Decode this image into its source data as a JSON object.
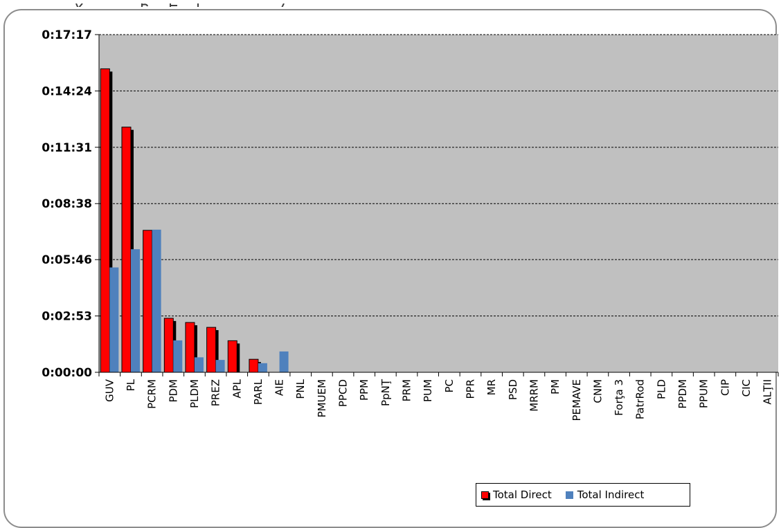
{
  "colors": {
    "plot_background": "#c0c0c0",
    "direct_fill": "#ff0000",
    "direct_shadow": "#000000",
    "indirect_fill": "#4f81bd",
    "gridline": "#000000",
    "frame": "#8c8c8c"
  },
  "chart_data": {
    "type": "bar",
    "title": "",
    "xlabel": "",
    "ylabel": "",
    "value_unit": "seconds",
    "ylim": [
      0,
      1037
    ],
    "ytick_values": [
      0,
      173,
      346,
      518,
      691,
      864,
      1037
    ],
    "ytick_labels": [
      "0:00:00",
      "0:02:53",
      "0:05:46",
      "0:08:38",
      "0:11:31",
      "0:14:24",
      "0:17:17"
    ],
    "gridlines": "horizontal dashed",
    "legend_position": "bottom-right",
    "categories": [
      "GUV",
      "PL",
      "PCRM",
      "PDM",
      "PLDM",
      "PREZ",
      "APL",
      "PARL",
      "AIE",
      "PNL",
      "PMUEM",
      "PPCD",
      "PPM",
      "PpNŢ",
      "PRM",
      "PUM",
      "PC",
      "PPR",
      "MR",
      "PSD",
      "MRRM",
      "PM",
      "PEMAVE",
      "CNM",
      "Forţa 3",
      "PatrRod",
      "PLD",
      "PPDM",
      "PPUM",
      "CIP",
      "CIC",
      "ALŢII"
    ],
    "series": [
      {
        "name": "Total Direct",
        "values": [
          932,
          753,
          436,
          166,
          153,
          138,
          97,
          40,
          0,
          0,
          0,
          0,
          0,
          0,
          0,
          0,
          0,
          0,
          0,
          0,
          0,
          0,
          0,
          0,
          0,
          0,
          0,
          0,
          0,
          0,
          0,
          0
        ]
      },
      {
        "name": "Total Indirect",
        "values": [
          322,
          378,
          438,
          98,
          46,
          38,
          0,
          28,
          64,
          0,
          0,
          0,
          0,
          0,
          0,
          0,
          0,
          0,
          0,
          0,
          0,
          0,
          0,
          0,
          0,
          0,
          0,
          0,
          0,
          0,
          0,
          0
        ]
      }
    ]
  }
}
